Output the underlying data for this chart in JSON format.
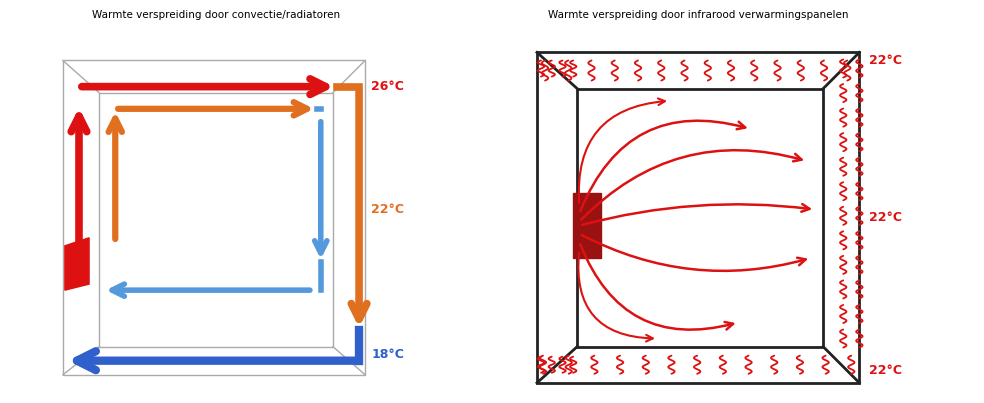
{
  "title_left": "Warmte verspreiding door convectie/radiatoren",
  "title_right": "Warmte verspreiding door infrarood verwarmingspanelen",
  "bg_color": "#ffffff",
  "red_color": "#dd1111",
  "orange_color": "#e07020",
  "blue_dark": "#3060cc",
  "blue_light": "#5599dd",
  "dark_red_panel": "#991111",
  "box_color_left": "#aaaaaa",
  "box_color_right": "#222222",
  "temp_26": "26°C",
  "temp_22_orange": "22°C",
  "temp_18": "18°C",
  "temp_22_top": "22°C",
  "temp_22_mid": "22°C",
  "temp_22_bot": "22°C"
}
